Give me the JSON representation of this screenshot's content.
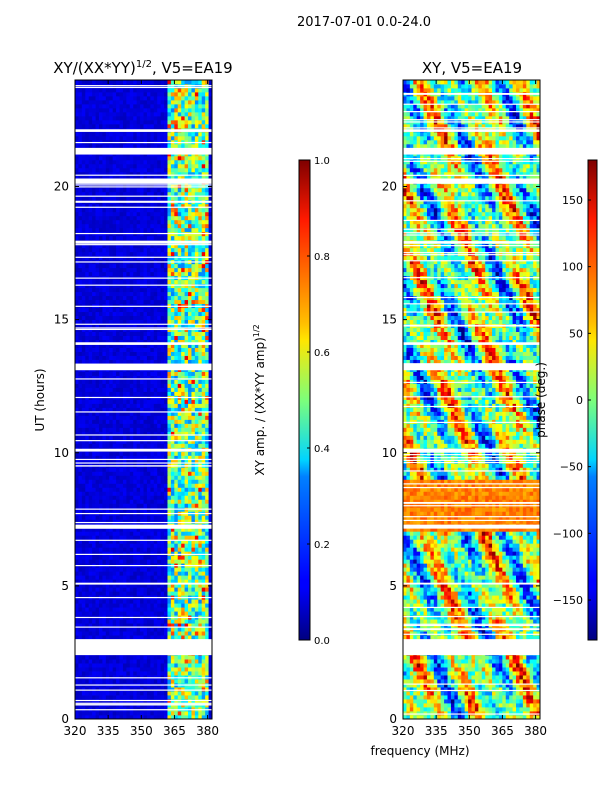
{
  "figure_title": "2017-07-01 0.0-24.0",
  "shared_xlabel": "frequency (MHz)",
  "chart_data": [
    {
      "type": "heatmap",
      "title_main": "XY/(XX*YY)",
      "title_sup": "1/2",
      "title_rest": ", V5=EA19",
      "xlabel": "frequency (MHz)",
      "ylabel": "UT (hours)",
      "xlim": [
        320,
        382
      ],
      "ylim": [
        0,
        24
      ],
      "xticks": [
        320,
        335,
        350,
        365,
        380
      ],
      "yticks": [
        0,
        5,
        10,
        15,
        20
      ],
      "colorbar": {
        "label_main": "XY amp. / (XX*YY amp)",
        "label_sup": "1/2",
        "range": [
          0.0,
          1.0
        ],
        "ticks": [
          "0.0",
          "0.2",
          "0.4",
          "0.6",
          "0.8",
          "1.0"
        ],
        "tick_values": [
          0.0,
          0.2,
          0.4,
          0.6,
          0.8,
          1.0
        ]
      }
    },
    {
      "type": "heatmap",
      "title_main": "XY, V5=EA19",
      "xlabel": "frequency (MHz)",
      "ylabel": "",
      "xlim": [
        320,
        382
      ],
      "ylim": [
        0,
        24
      ],
      "xticks": [
        320,
        335,
        350,
        365,
        380
      ],
      "yticks": [
        0,
        5,
        10,
        15,
        20
      ],
      "colorbar": {
        "label_main": "phase (deg.)",
        "range": [
          -180,
          180
        ],
        "ticks": [
          "−150",
          "−100",
          "−50",
          "0",
          "50",
          "100",
          "150"
        ],
        "tick_values": [
          -150,
          -100,
          -50,
          0,
          50,
          100,
          150
        ]
      }
    }
  ],
  "gaps_ut_hours": [
    [
      2.4,
      3.0
    ],
    [
      7.15,
      7.3
    ],
    [
      13.1,
      13.35
    ],
    [
      14.05,
      14.15
    ],
    [
      20.1,
      20.3
    ],
    [
      21.2,
      21.45
    ],
    [
      22.05,
      22.15
    ],
    [
      10.05,
      10.15
    ],
    [
      5.05,
      5.12
    ],
    [
      17.85,
      17.95
    ]
  ],
  "colormaps": {
    "name": "jet"
  }
}
